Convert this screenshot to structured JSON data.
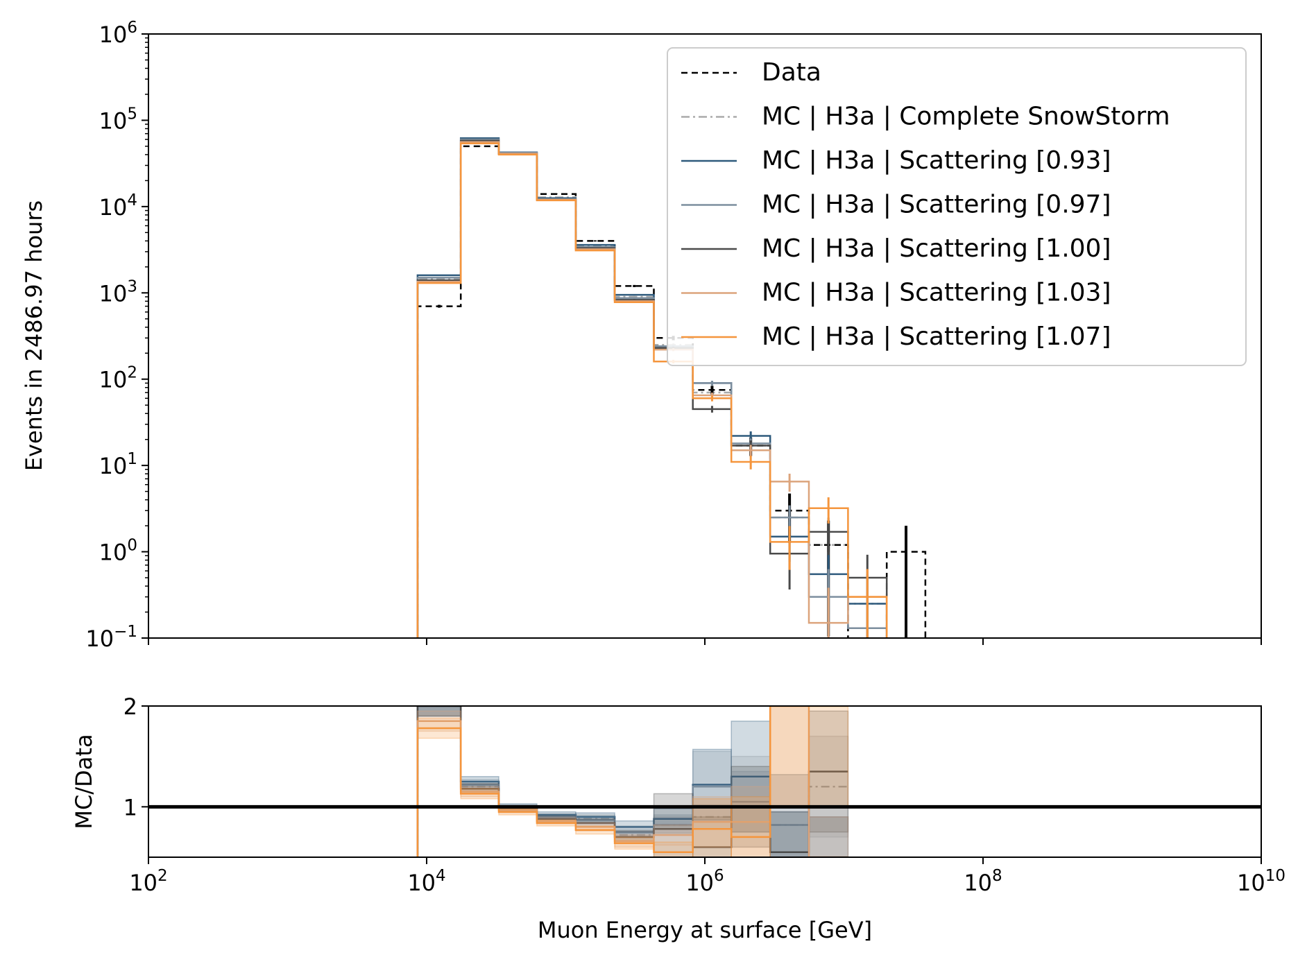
{
  "chart_data": [
    {
      "type": "step-histogram",
      "panel": "main",
      "xlabel": "",
      "ylabel": "Events in 2486.97 hours",
      "x_scale": "log",
      "y_scale": "log",
      "xlim": [
        100,
        10000000000
      ],
      "ylim": [
        0.1,
        1000000
      ],
      "y_ticks": [
        {
          "value": 0.1,
          "base": "10",
          "exp": "−1"
        },
        {
          "value": 1,
          "base": "10",
          "exp": "0"
        },
        {
          "value": 10,
          "base": "10",
          "exp": "1"
        },
        {
          "value": 100,
          "base": "10",
          "exp": "2"
        },
        {
          "value": 1000,
          "base": "10",
          "exp": "3"
        },
        {
          "value": 10000,
          "base": "10",
          "exp": "4"
        },
        {
          "value": 100000,
          "base": "10",
          "exp": "5"
        },
        {
          "value": 1000000,
          "base": "10",
          "exp": "6"
        }
      ],
      "legend_position": "upper right",
      "bin_edges": [
        8600,
        17600,
        33000,
        62000,
        118000,
        225000,
        430000,
        820000,
        1550000,
        2950000,
        5600000,
        10700000,
        20300000,
        38500000
      ],
      "series": [
        {
          "name": "Data",
          "color": "#000000",
          "style": "dashed",
          "values": [
            700,
            50000,
            41000,
            14000,
            4000,
            1200,
            300,
            75,
            17,
            3,
            1.2,
            null,
            1,
            null
          ],
          "errors": [
            null,
            null,
            null,
            null,
            null,
            null,
            null,
            null,
            null,
            null,
            null,
            null,
            1,
            null
          ]
        },
        {
          "name": "MC | H3a | Complete SnowStorm",
          "color": "#aaaaaa",
          "style": "dashdot",
          "values": [
            1450,
            57000,
            42000,
            12800,
            3500,
            900,
            250,
            70,
            17,
            2.5,
            1.2,
            0.25,
            null,
            null
          ]
        },
        {
          "name": "MC | H3a | Scattering [0.93]",
          "color": "#2e5a7c",
          "style": "solid",
          "values": [
            1600,
            62000,
            42500,
            12500,
            3600,
            950,
            240,
            90,
            22,
            1.5,
            0.55,
            0.25,
            null,
            null
          ]
        },
        {
          "name": "MC | H3a | Scattering [0.97]",
          "color": "#7c8e9e",
          "style": "solid",
          "values": [
            1500,
            60000,
            42000,
            12200,
            3400,
            870,
            240,
            90,
            18,
            2.5,
            0.3,
            0.13,
            null,
            null
          ]
        },
        {
          "name": "MC | H3a | Scattering [1.00]",
          "color": "#4a4a4a",
          "style": "solid",
          "values": [
            1400,
            58000,
            41000,
            12000,
            3300,
            830,
            230,
            45,
            17,
            0.95,
            1.7,
            0.5,
            null,
            null
          ]
        },
        {
          "name": "MC | H3a | Scattering [1.03]",
          "color": "#dca47c",
          "style": "solid",
          "values": [
            1350,
            56000,
            41000,
            12000,
            3200,
            800,
            220,
            65,
            15,
            6.5,
            0.15,
            0.3,
            null,
            null
          ]
        },
        {
          "name": "MC | H3a | Scattering [1.07]",
          "color": "#f5953c",
          "style": "solid",
          "values": [
            1300,
            54000,
            40000,
            11800,
            3100,
            780,
            160,
            60,
            11,
            1.3,
            3.2,
            0.3,
            null,
            null
          ]
        }
      ]
    },
    {
      "type": "ratio-step",
      "panel": "ratio",
      "xlabel": "Muon Energy at surface [GeV]",
      "ylabel": "MC/Data",
      "x_scale": "log",
      "xlim": [
        100,
        10000000000
      ],
      "ylim": [
        0.5,
        2
      ],
      "y_ticks": [
        1,
        2
      ],
      "x_ticks": [
        {
          "value": 100,
          "base": "10",
          "exp": "2"
        },
        {
          "value": 10000,
          "base": "10",
          "exp": "4"
        },
        {
          "value": 1000000,
          "base": "10",
          "exp": "6"
        },
        {
          "value": 100000000,
          "base": "10",
          "exp": "8"
        },
        {
          "value": 10000000000,
          "base": "10",
          "exp": "10"
        }
      ],
      "reference_line": 1,
      "bin_edges": [
        8600,
        17600,
        33000,
        62000,
        118000,
        225000,
        430000,
        820000,
        1550000,
        2950000,
        5600000,
        10700000
      ],
      "series": [
        {
          "name": "MC | H3a | Complete SnowStorm",
          "color": "#aaaaaa",
          "style": "dashdot",
          "values": [
            2.0,
            1.2,
            0.98,
            0.9,
            0.88,
            0.72,
            0.82,
            0.9,
            1.3,
            0.82,
            1.2
          ],
          "band": [
            0.1,
            0.05,
            0.03,
            0.03,
            0.04,
            0.05,
            0.08,
            0.12,
            0.2,
            0.5,
            0.5
          ]
        },
        {
          "name": "MC | H3a | Scattering [0.93]",
          "color": "#2e5a7c",
          "style": "solid",
          "values": [
            2.0,
            1.25,
            1.0,
            0.92,
            0.9,
            0.8,
            0.88,
            1.22,
            1.3,
            0.55,
            0.5
          ],
          "band": [
            0.1,
            0.05,
            0.03,
            0.03,
            0.04,
            0.06,
            0.1,
            0.35,
            0.55,
            0.4,
            0.4
          ]
        },
        {
          "name": "MC | H3a | Scattering [0.97]",
          "color": "#7c8e9e",
          "style": "solid",
          "values": [
            2.0,
            1.22,
            0.99,
            0.9,
            0.87,
            0.75,
            0.82,
            1.2,
            1.05,
            0.82,
            0.5
          ],
          "band": [
            0.1,
            0.05,
            0.03,
            0.03,
            0.04,
            0.06,
            0.1,
            0.35,
            0.3,
            0.5,
            0.4
          ]
        },
        {
          "name": "MC | H3a | Scattering [1.00]",
          "color": "#4a4a4a",
          "style": "solid",
          "values": [
            2.0,
            1.18,
            0.98,
            0.88,
            0.84,
            0.7,
            0.78,
            0.6,
            1.0,
            0.55,
            1.35
          ],
          "band": [
            0.1,
            0.05,
            0.03,
            0.03,
            0.04,
            0.06,
            0.35,
            0.3,
            0.4,
            0.4,
            0.6
          ]
        },
        {
          "name": "MC | H3a | Scattering [1.03]",
          "color": "#dca47c",
          "style": "solid",
          "values": [
            1.85,
            1.15,
            0.97,
            0.86,
            0.8,
            0.66,
            0.72,
            0.85,
            0.85,
            2.0,
            0.5
          ],
          "band": [
            0.1,
            0.05,
            0.03,
            0.03,
            0.04,
            0.06,
            0.1,
            0.25,
            0.35,
            1.0,
            0.4
          ]
        },
        {
          "name": "MC | H3a | Scattering [1.07]",
          "color": "#f5953c",
          "style": "solid",
          "values": [
            1.78,
            1.13,
            0.95,
            0.84,
            0.77,
            0.64,
            0.55,
            0.78,
            0.7,
            2.0,
            2.0
          ],
          "band": [
            0.1,
            0.05,
            0.03,
            0.03,
            0.04,
            0.06,
            0.1,
            0.3,
            0.4,
            1.0,
            1.0
          ]
        }
      ]
    }
  ]
}
